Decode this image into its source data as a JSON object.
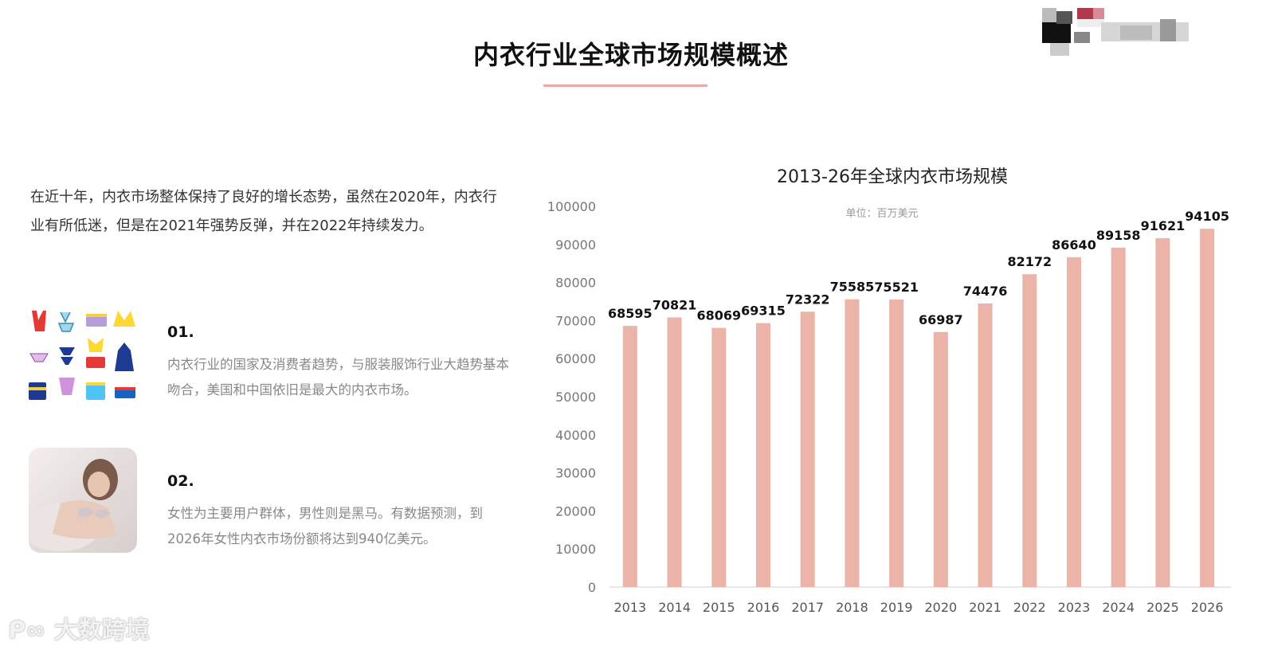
{
  "page": {
    "title": "内衣行业全球市场规模概述",
    "intro": "在近十年，内衣市场整体保持了良好的增长态势，虽然在2020年，内衣行业有所低迷，但是在2021年强势反弹，并在2022年持续发力。",
    "items": [
      {
        "no": "01.",
        "text": "内衣行业的国家及消费者趋势，与服装服饰行业大趋势基本吻合，美国和中国依旧是最大的内衣市场。",
        "icon": "lingerie-grid-icon"
      },
      {
        "no": "02.",
        "text": "女性为主要用户群体，男性则是黑马。有数据预测，到2026年女性内衣市场份额将达到940亿美元。",
        "icon": "model-photo"
      }
    ],
    "watermark": "大数跨境",
    "accent_color": "#e9aaa3"
  },
  "chart_data": {
    "type": "bar",
    "title": "2013-26年全球内衣市场规模",
    "subtitle": "单位：百万美元",
    "categories": [
      "2013",
      "2014",
      "2015",
      "2016",
      "2017",
      "2018",
      "2019",
      "2020",
      "2021",
      "2022",
      "2023",
      "2024",
      "2025",
      "2026"
    ],
    "values": [
      68595,
      70821,
      68069,
      69315,
      72322,
      75585,
      75521,
      66987,
      74476,
      82172,
      86640,
      89158,
      91621,
      94105
    ],
    "ylim": [
      0,
      100000
    ],
    "yticks": [
      0,
      10000,
      20000,
      30000,
      40000,
      50000,
      60000,
      70000,
      80000,
      90000,
      100000
    ],
    "bar_color": "#ecb4a8",
    "grid": false,
    "legend": "none"
  }
}
